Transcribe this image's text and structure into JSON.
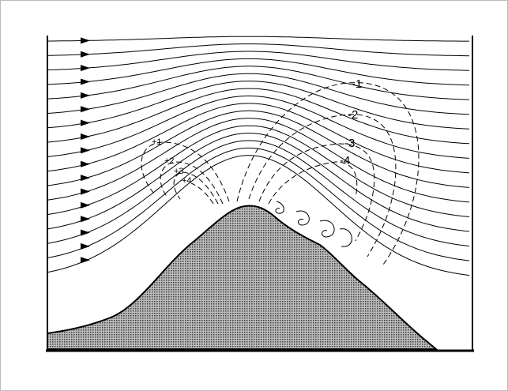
{
  "labels": {
    "negative": [
      "-1",
      "-2",
      "-3",
      "-4"
    ],
    "positive": [
      "+1",
      "+2",
      "+3",
      "+4"
    ]
  }
}
